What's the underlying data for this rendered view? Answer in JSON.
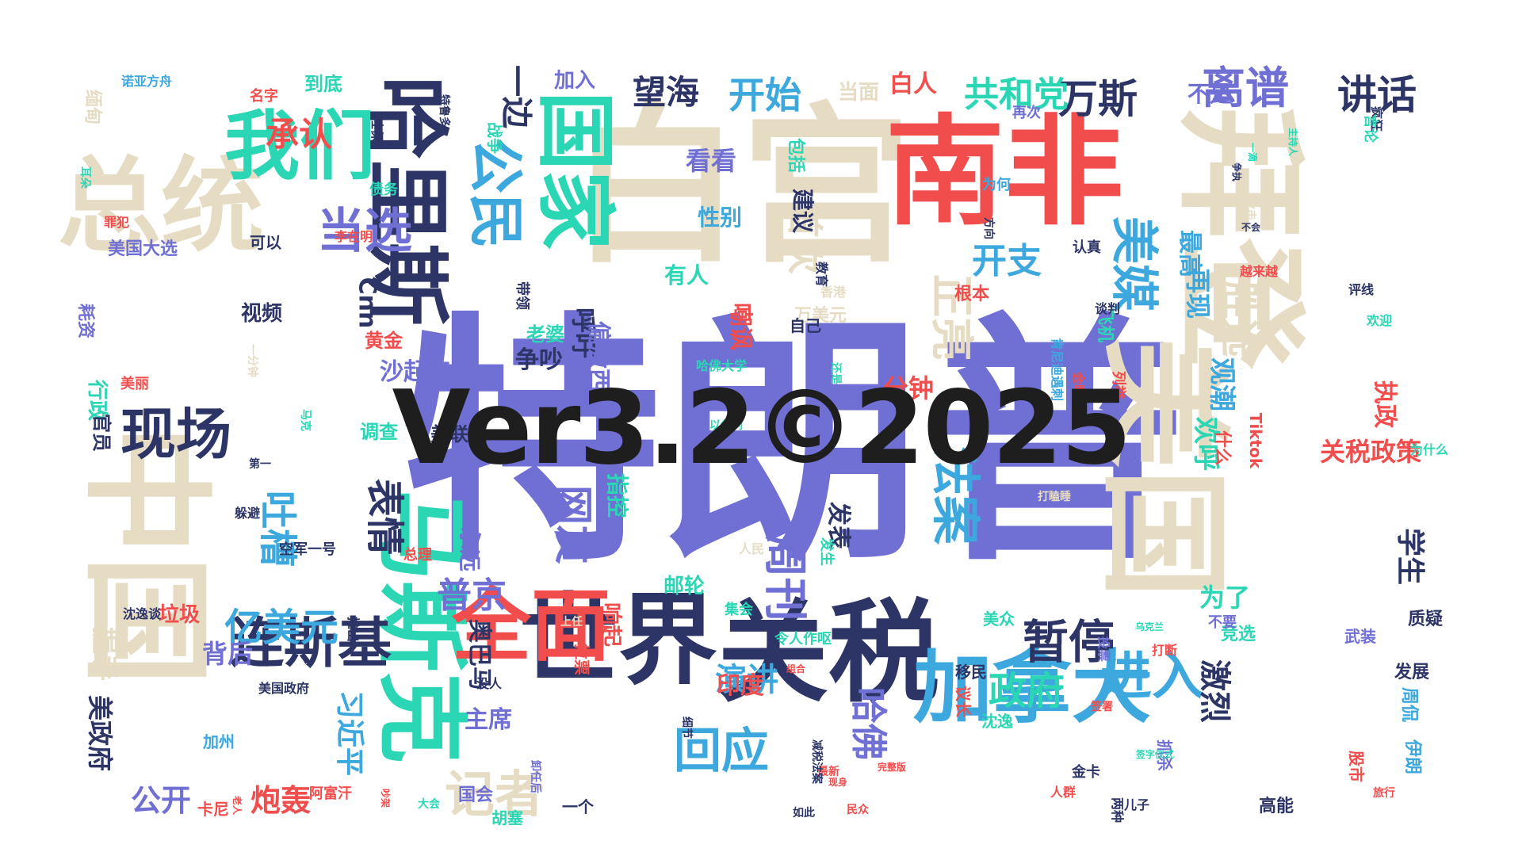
{
  "colors": {
    "beige": "#e6dcc4",
    "purple": "#6f6fd4",
    "red": "#f24d4d",
    "teal": "#2bd6b4",
    "blue": "#3ca8dd",
    "navy": "#2c3566",
    "paleblue": "#c8cce8"
  },
  "watermark": "Ver3.2©2025",
  "words": [
    {
      "text": "特朗普",
      "color": "purple"
    },
    {
      "text": "白宫",
      "color": "beige"
    },
    {
      "text": "南非",
      "color": "red"
    },
    {
      "text": "美国",
      "color": "beige"
    },
    {
      "text": "总统",
      "color": "beige"
    },
    {
      "text": "中国",
      "color": "beige"
    },
    {
      "text": "拜登",
      "color": "beige"
    },
    {
      "text": "国家",
      "color": "teal"
    },
    {
      "text": "哈里斯",
      "color": "navy"
    },
    {
      "text": "关税",
      "color": "navy"
    },
    {
      "text": "世界",
      "color": "navy"
    },
    {
      "text": "马斯克",
      "color": "teal"
    },
    {
      "text": "加拿大",
      "color": "blue"
    },
    {
      "text": "全面",
      "color": "red"
    },
    {
      "text": "我们",
      "color": "teal"
    },
    {
      "text": "公民",
      "color": "blue"
    },
    {
      "text": "现场",
      "color": "navy"
    },
    {
      "text": "连斯基",
      "color": "navy"
    },
    {
      "text": "法案",
      "color": "blue"
    },
    {
      "text": "美媒",
      "color": "blue"
    },
    {
      "text": "暂停",
      "color": "navy"
    },
    {
      "text": "进入",
      "color": "blue"
    },
    {
      "text": "回应",
      "color": "blue"
    },
    {
      "text": "当选",
      "color": "purple"
    },
    {
      "text": "离谱",
      "color": "purple"
    },
    {
      "text": "讲话",
      "color": "navy"
    },
    {
      "text": "万斯",
      "color": "navy"
    },
    {
      "text": "政府",
      "color": "teal"
    },
    {
      "text": "周刊",
      "color": "purple"
    },
    {
      "text": "记者",
      "color": "beige"
    },
    {
      "text": "亿美元",
      "color": "blue"
    },
    {
      "text": "开始",
      "color": "blue"
    },
    {
      "text": "共和党",
      "color": "teal"
    },
    {
      "text": "胜选",
      "color": "beige"
    },
    {
      "text": "正亮",
      "color": "beige"
    },
    {
      "text": "首次",
      "color": "beige"
    },
    {
      "text": "开支",
      "color": "blue"
    },
    {
      "text": "望海",
      "color": "navy"
    },
    {
      "text": "一边",
      "color": "navy"
    },
    {
      "text": "承认",
      "color": "red"
    },
    {
      "text": "表情",
      "color": "navy"
    },
    {
      "text": "吐槽",
      "color": "blue"
    },
    {
      "text": "网友",
      "color": "purple"
    },
    {
      "text": "普京",
      "color": "purple"
    },
    {
      "text": "哈佛",
      "color": "purple"
    },
    {
      "text": "演讲",
      "color": "blue"
    },
    {
      "text": "激烈",
      "color": "navy"
    },
    {
      "text": "学生",
      "color": "navy"
    },
    {
      "text": "观潮",
      "color": "blue"
    },
    {
      "text": "欢呼",
      "color": "teal"
    },
    {
      "text": "关税政策",
      "color": "red"
    },
    {
      "text": "习近平",
      "color": "blue"
    },
    {
      "text": "炮轰",
      "color": "red"
    },
    {
      "text": "公开",
      "color": "purple"
    },
    {
      "text": "背后",
      "color": "purple"
    },
    {
      "text": "握手",
      "color": "beige"
    },
    {
      "text": "美政府",
      "color": "navy"
    },
    {
      "text": "主席",
      "color": "purple"
    },
    {
      "text": "奥巴马",
      "color": "navy"
    },
    {
      "text": "为了",
      "color": "teal"
    },
    {
      "text": "印度",
      "color": "red"
    },
    {
      "text": "发表",
      "color": "navy"
    },
    {
      "text": "指控",
      "color": "teal"
    },
    {
      "text": "争吵",
      "color": "navy"
    },
    {
      "text": "呼吁",
      "color": "navy"
    },
    {
      "text": "分钟",
      "color": "red"
    },
    {
      "text": "再现",
      "color": "blue"
    },
    {
      "text": "最高",
      "color": "blue"
    },
    {
      "text": "执政",
      "color": "red"
    },
    {
      "text": "白人",
      "color": "red"
    },
    {
      "text": "不是",
      "color": "purple"
    },
    {
      "text": "当面",
      "color": "beige"
    },
    {
      "text": "包括",
      "color": "teal"
    },
    {
      "text": "看看",
      "color": "purple"
    },
    {
      "text": "性别",
      "color": "blue"
    },
    {
      "text": "建议",
      "color": "navy"
    },
    {
      "text": "嘲讽",
      "color": "red"
    },
    {
      "text": "有人",
      "color": "teal"
    },
    {
      "text": "万美元",
      "color": "beige"
    },
    {
      "text": "老婆",
      "color": "teal"
    },
    {
      "text": "视频",
      "color": "navy"
    },
    {
      "text": "到底",
      "color": "teal"
    },
    {
      "text": "战争",
      "color": "teal"
    },
    {
      "text": "加入",
      "color": "purple"
    },
    {
      "text": "黄金",
      "color": "red"
    },
    {
      "text": "沙起来",
      "color": "purple"
    },
    {
      "text": "美联储",
      "color": "navy"
    },
    {
      "text": "调查",
      "color": "teal"
    },
    {
      "text": "永远",
      "color": "purple"
    },
    {
      "text": "邮轮",
      "color": "teal"
    },
    {
      "text": "响起",
      "color": "red"
    },
    {
      "text": "垃圾",
      "color": "red"
    },
    {
      "text": "行政",
      "color": "teal"
    },
    {
      "text": "官员",
      "color": "navy"
    },
    {
      "text": "美丽",
      "color": "red"
    },
    {
      "text": "美国大选",
      "color": "purple"
    },
    {
      "text": "罪犯",
      "color": "red"
    },
    {
      "text": "耗资",
      "color": "purple"
    },
    {
      "text": "可以",
      "color": "navy"
    },
    {
      "text": "债务",
      "color": "teal"
    },
    {
      "text": "社保",
      "color": "navy"
    },
    {
      "text": "名字",
      "color": "red"
    },
    {
      "text": "缅甸",
      "color": "beige"
    },
    {
      "text": "诺亚方舟",
      "color": "blue"
    },
    {
      "text": "耳朵",
      "color": "teal"
    },
    {
      "text": "再次",
      "color": "purple"
    },
    {
      "text": "为何",
      "color": "blue"
    },
    {
      "text": "方向",
      "color": "navy"
    },
    {
      "text": "认真",
      "color": "navy"
    },
    {
      "text": "根本",
      "color": "red"
    },
    {
      "text": "飞机",
      "color": "teal"
    },
    {
      "text": "越来越",
      "color": "red"
    },
    {
      "text": "疯狂",
      "color": "navy"
    },
    {
      "text": "言论",
      "color": "teal"
    },
    {
      "text": "评线",
      "color": "navy"
    },
    {
      "text": "欢迎",
      "color": "teal"
    },
    {
      "text": "列举",
      "color": "red"
    },
    {
      "text": "Tiktok",
      "color": "red"
    },
    {
      "text": "为什么",
      "color": "teal"
    },
    {
      "text": "什么",
      "color": "red"
    },
    {
      "text": "竞选",
      "color": "teal"
    },
    {
      "text": "质疑",
      "color": "navy"
    },
    {
      "text": "发展",
      "color": "navy"
    },
    {
      "text": "周侃",
      "color": "blue"
    },
    {
      "text": "伊朗",
      "color": "blue"
    },
    {
      "text": "股市",
      "color": "red"
    },
    {
      "text": "高能",
      "color": "navy"
    },
    {
      "text": "旅行",
      "color": "red"
    },
    {
      "text": "美众",
      "color": "teal"
    },
    {
      "text": "议长",
      "color": "red"
    },
    {
      "text": "移民",
      "color": "navy"
    },
    {
      "text": "沈逸",
      "color": "teal"
    },
    {
      "text": "金卡",
      "color": "navy"
    },
    {
      "text": "儿子",
      "color": "navy"
    },
    {
      "text": "人群",
      "color": "red"
    },
    {
      "text": "两种",
      "color": "navy"
    },
    {
      "text": "如此",
      "color": "navy"
    },
    {
      "text": "最新",
      "color": "red"
    },
    {
      "text": "胡塞",
      "color": "teal"
    },
    {
      "text": "国会",
      "color": "purple"
    },
    {
      "text": "一个",
      "color": "navy"
    },
    {
      "text": "卡尼",
      "color": "red"
    },
    {
      "text": "加州",
      "color": "blue"
    },
    {
      "text": "空军一号",
      "color": "navy"
    },
    {
      "text": "总理",
      "color": "red"
    },
    {
      "text": "沈逸谈",
      "color": "navy"
    },
    {
      "text": "推出",
      "color": "navy"
    },
    {
      "text": "美国政府",
      "color": "navy"
    },
    {
      "text": "阿富汗",
      "color": "red"
    },
    {
      "text": "细节",
      "color": "navy"
    },
    {
      "text": "令人作呕",
      "color": "teal"
    },
    {
      "text": "集会",
      "color": "teal"
    },
    {
      "text": "没人",
      "color": "navy"
    },
    {
      "text": "拉票",
      "color": "red"
    },
    {
      "text": "人民",
      "color": "beige"
    },
    {
      "text": "发生",
      "color": "teal"
    },
    {
      "text": "打瞌睡",
      "color": "beige"
    },
    {
      "text": "躲避",
      "color": "navy"
    },
    {
      "text": "第一",
      "color": "navy"
    },
    {
      "text": "马克",
      "color": "teal"
    },
    {
      "text": "一分钟",
      "color": "beige"
    },
    {
      "text": "肯尼迪遇刺",
      "color": "blue"
    },
    {
      "text": "哈佛大学",
      "color": "teal"
    },
    {
      "text": "还是",
      "color": "teal"
    },
    {
      "text": "会晤",
      "color": "red"
    },
    {
      "text": "李在明",
      "color": "red"
    },
    {
      "text": "带领",
      "color": "navy"
    },
    {
      "text": "香港",
      "color": "beige"
    },
    {
      "text": "教育",
      "color": "navy"
    },
    {
      "text": "自己",
      "color": "navy"
    },
    {
      "text": "谈判",
      "color": "navy"
    },
    {
      "text": "Cnn",
      "color": "navy"
    },
    {
      "text": "抓杀",
      "color": "purple"
    },
    {
      "text": "投票",
      "color": "purple"
    },
    {
      "text": "打断",
      "color": "red"
    },
    {
      "text": "不要",
      "color": "purple"
    },
    {
      "text": "武装",
      "color": "purple"
    },
    {
      "text": "减税法案",
      "color": "navy"
    },
    {
      "text": "民众",
      "color": "red"
    },
    {
      "text": "完整版",
      "color": "red"
    },
    {
      "text": "现身",
      "color": "red"
    },
    {
      "text": "卸任后",
      "color": "purple"
    },
    {
      "text": "签署",
      "color": "red"
    },
    {
      "text": "签字仪式",
      "color": "teal"
    },
    {
      "text": "大会",
      "color": "teal"
    },
    {
      "text": "老人",
      "color": "red"
    },
    {
      "text": "上任",
      "color": "beige"
    },
    {
      "text": "主持人",
      "color": "teal"
    },
    {
      "text": "一滴",
      "color": "teal"
    },
    {
      "text": "攻击",
      "color": "beige"
    },
    {
      "text": "争执",
      "color": "navy"
    },
    {
      "text": "不会",
      "color": "navy"
    },
    {
      "text": "特鲁多",
      "color": "navy"
    },
    {
      "text": "吵架",
      "color": "red"
    },
    {
      "text": "组合",
      "color": "red"
    },
    {
      "text": "乌克兰",
      "color": "teal"
    },
    {
      "text": "偏激西",
      "color": "purple"
    },
    {
      "text": "以色列",
      "color": "teal"
    }
  ]
}
